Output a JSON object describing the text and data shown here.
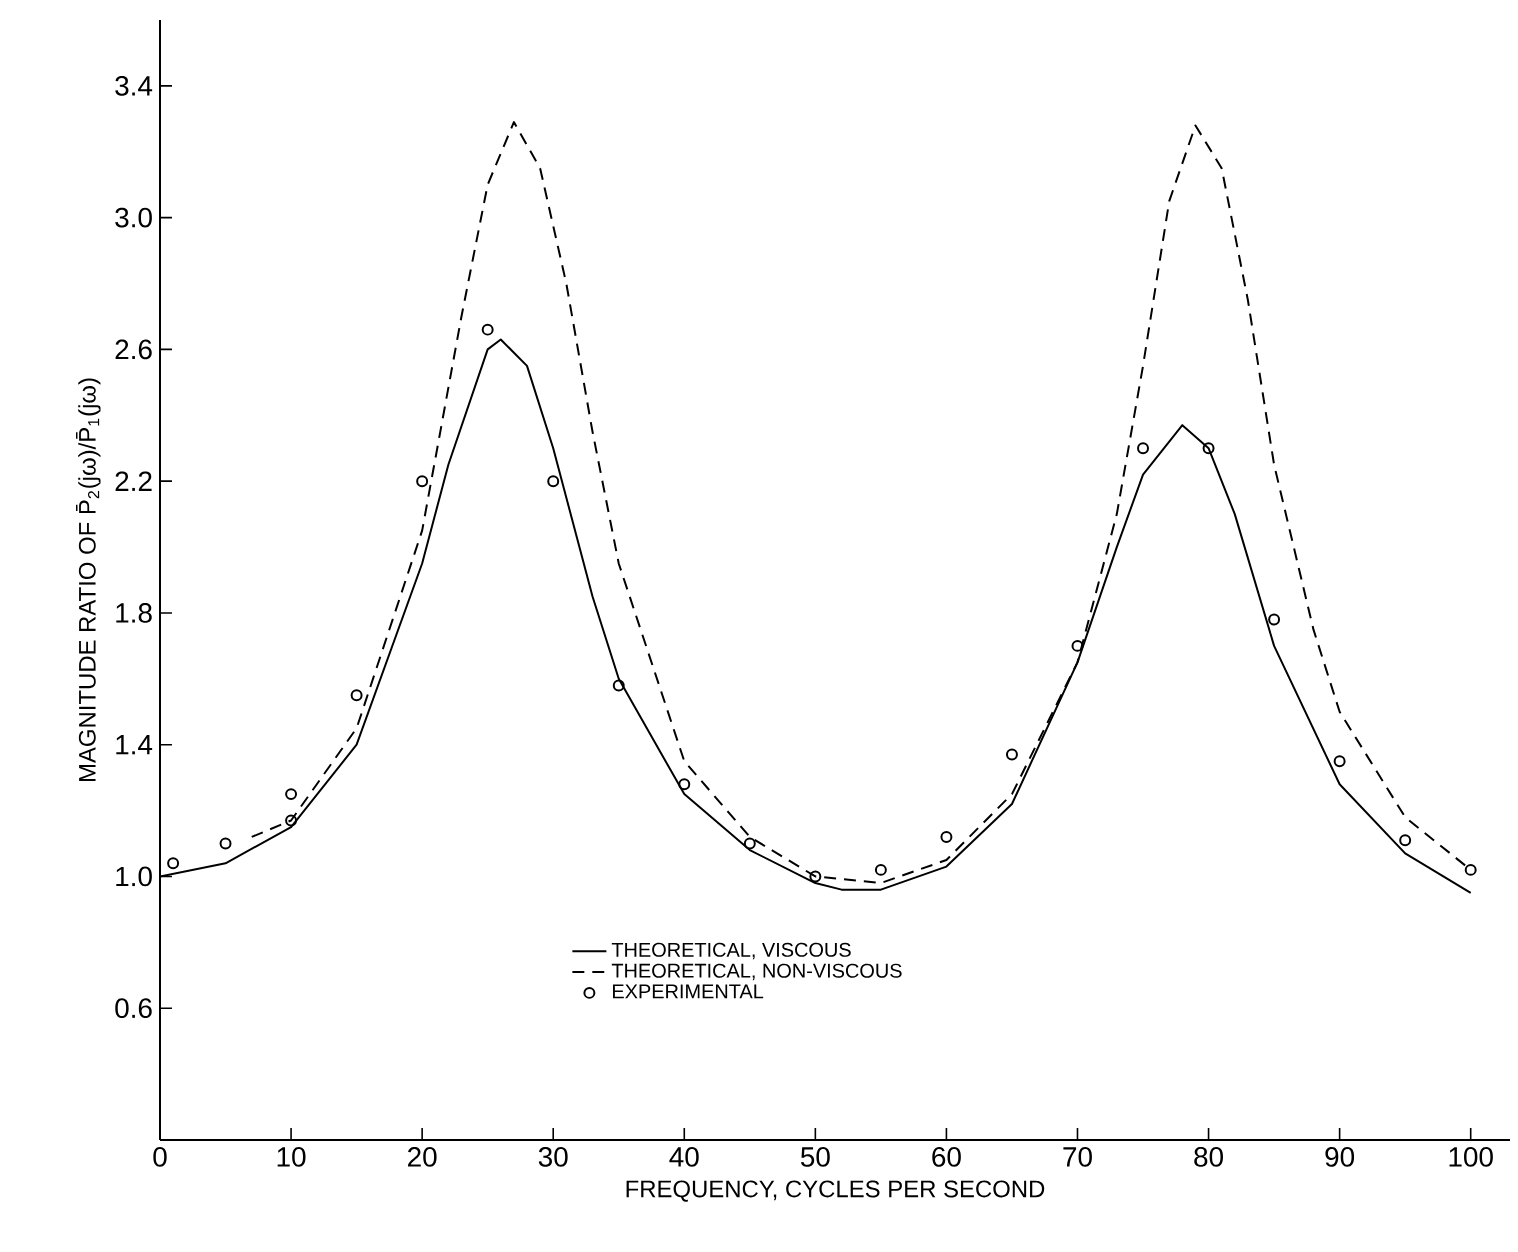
{
  "chart_data": {
    "type": "line",
    "xlabel": "FREQUENCY, CYCLES PER SECOND",
    "ylabel": "MAGNITUDE RATIO OF P̄$_{2}$(jω)/P̄$_{1}$(jω)",
    "xlim": [
      0,
      103
    ],
    "ylim": [
      0.2,
      3.6
    ],
    "xticks": [
      0,
      10,
      20,
      30,
      40,
      50,
      60,
      70,
      80,
      90,
      100
    ],
    "yticks": [
      {
        "value": 0.6,
        "label": "0.6"
      },
      {
        "value": 1.0,
        "label": "1.0"
      },
      {
        "value": 1.4,
        "label": "1.4"
      },
      {
        "value": 1.8,
        "label": "1.8"
      },
      {
        "value": 2.2,
        "label": "2.2"
      },
      {
        "value": 2.6,
        "label": "2.6"
      },
      {
        "value": 3.0,
        "label": "3.0"
      },
      {
        "value": 3.4,
        "label": "3.4"
      }
    ],
    "grid": false,
    "legend": "bottom",
    "series": [
      {
        "name": "THEORETICAL, VISCOUS",
        "line_style": "solid",
        "marker": "none",
        "color": "#000000",
        "x": [
          0,
          5,
          10,
          15,
          20,
          22,
          25,
          26,
          28,
          30,
          33,
          35,
          40,
          45,
          50,
          52,
          55,
          60,
          65,
          70,
          73,
          75,
          78,
          80,
          82,
          85,
          90,
          95,
          100
        ],
        "values": [
          1.0,
          1.04,
          1.15,
          1.4,
          1.95,
          2.25,
          2.6,
          2.63,
          2.55,
          2.3,
          1.85,
          1.6,
          1.25,
          1.08,
          0.98,
          0.96,
          0.96,
          1.03,
          1.22,
          1.65,
          2.0,
          2.22,
          2.37,
          2.3,
          2.1,
          1.7,
          1.28,
          1.07,
          0.95
        ]
      },
      {
        "name": "THEORETICAL, NON-VISCOUS",
        "line_style": "dashed",
        "marker": "none",
        "color": "#000000",
        "x": [
          7,
          10,
          15,
          20,
          23,
          25,
          27,
          29,
          31,
          33,
          35,
          40,
          45,
          50,
          55,
          60,
          65,
          70,
          73,
          75,
          77,
          79,
          81,
          83,
          85,
          88,
          90,
          95,
          100
        ],
        "values": [
          1.12,
          1.17,
          1.45,
          2.05,
          2.7,
          3.1,
          3.29,
          3.15,
          2.8,
          2.35,
          1.95,
          1.35,
          1.12,
          1.0,
          0.98,
          1.05,
          1.25,
          1.65,
          2.1,
          2.55,
          3.05,
          3.28,
          3.15,
          2.75,
          2.25,
          1.75,
          1.5,
          1.18,
          1.02
        ]
      },
      {
        "name": "EXPERIMENTAL",
        "type": "scatter",
        "marker": "circle",
        "color": "#000000",
        "x": [
          1,
          5,
          10,
          10,
          15,
          20,
          25,
          30,
          35,
          40,
          45,
          50,
          55,
          60,
          65,
          70,
          75,
          80,
          85,
          90,
          95,
          100
        ],
        "values": [
          1.04,
          1.1,
          1.25,
          1.17,
          1.55,
          2.2,
          2.66,
          2.2,
          1.58,
          1.28,
          1.1,
          1.0,
          1.02,
          1.12,
          1.37,
          1.7,
          2.3,
          2.3,
          1.78,
          1.35,
          1.11,
          1.02
        ]
      }
    ]
  }
}
